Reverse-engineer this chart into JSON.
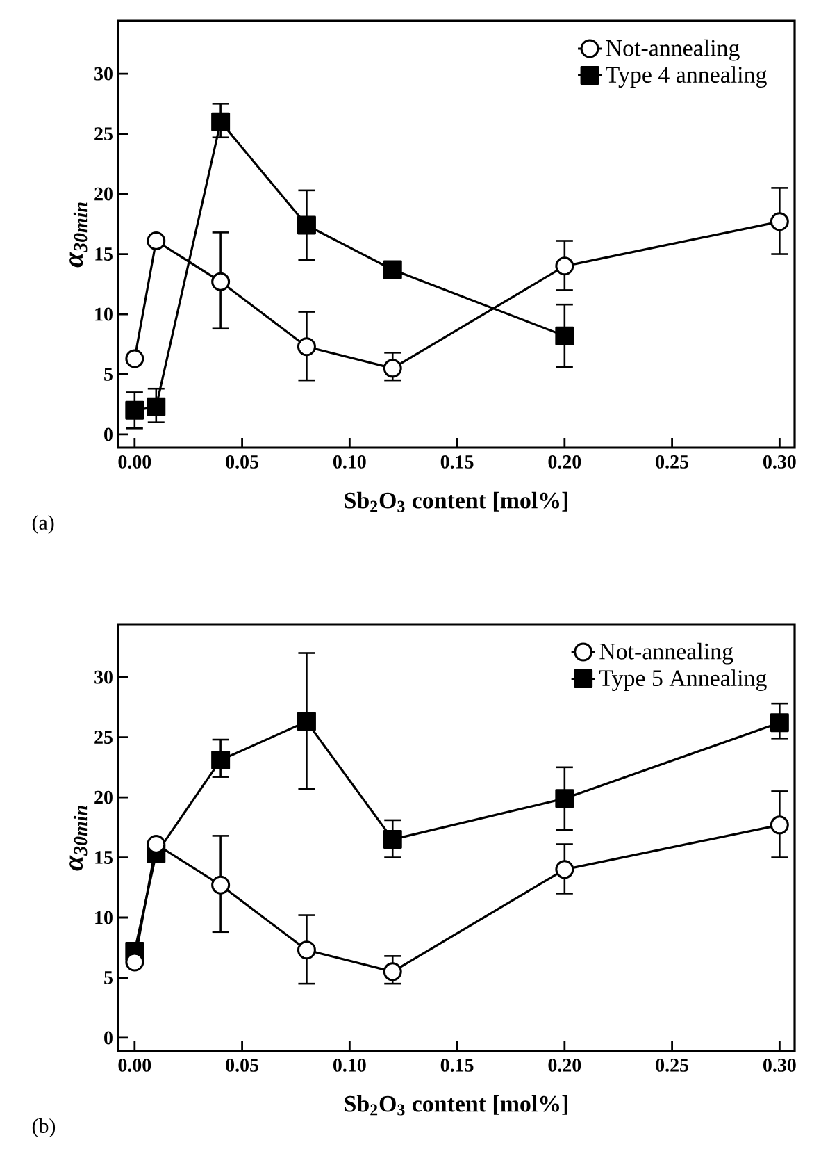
{
  "chart_data": [
    {
      "type": "line",
      "xlabel": "Sb$_{2}$O$_{3}$ content [mol%]",
      "ylabel": "α$_{30min}$",
      "xlim": [
        -0.0077,
        0.307
      ],
      "ylim": [
        -1.1,
        34.4
      ],
      "xticks": [
        {
          "value": 0,
          "label": "0.00"
        },
        0.05,
        {
          "value": 0.1,
          "label": "0.10"
        },
        0.15,
        {
          "value": 0.2,
          "label": "0.20"
        },
        0.25,
        {
          "value": 0.3,
          "label": "0.30"
        }
      ],
      "yticks": [
        0,
        5,
        10,
        15,
        20,
        25,
        30
      ],
      "legend": "top right",
      "grid": false,
      "line_style": "solid",
      "annotations": [
        "(a)"
      ],
      "series": [
        {
          "name": "Not-annealing",
          "color": "#000000",
          "marker": "circle",
          "x": [
            0,
            0.01,
            0.04,
            0.08,
            0.12,
            0.2,
            0.3
          ],
          "values": [
            6.3,
            16.1,
            12.7,
            7.3,
            5.5,
            14.0,
            17.7
          ],
          "errors": [
            null,
            null,
            [
              8.8,
              16.8
            ],
            [
              4.5,
              10.2
            ],
            [
              4.5,
              6.8
            ],
            [
              12.0,
              16.1
            ],
            [
              15.0,
              20.5
            ]
          ]
        },
        {
          "name": "Type 4 annealing",
          "color": "#000000",
          "marker": "square",
          "x": [
            0,
            0.01,
            0.04,
            0.08,
            0.12,
            0.2
          ],
          "values": [
            2.0,
            2.3,
            26.0,
            17.4,
            13.7,
            8.2
          ],
          "errors": [
            [
              0.5,
              3.5
            ],
            [
              1.0,
              3.8
            ],
            [
              24.7,
              27.5
            ],
            [
              14.5,
              20.3
            ],
            null,
            [
              5.6,
              10.8
            ]
          ]
        }
      ]
    },
    {
      "type": "line",
      "xlabel": "Sb$_{2}$O$_{3}$ content [mol%]",
      "ylabel": "α$_{30min}$",
      "xlim": [
        -0.0077,
        0.307
      ],
      "ylim": [
        -1.1,
        34.4
      ],
      "xticks": [
        {
          "value": 0,
          "label": "0.00"
        },
        0.05,
        {
          "value": 0.1,
          "label": "0.10"
        },
        0.15,
        {
          "value": 0.2,
          "label": "0.20"
        },
        0.25,
        {
          "value": 0.3,
          "label": "0.30"
        }
      ],
      "yticks": [
        0,
        5,
        10,
        15,
        20,
        25,
        30
      ],
      "legend": "top right",
      "grid": false,
      "line_style": "solid",
      "annotations": [
        "(b)"
      ],
      "series": [
        {
          "name": "Not-annealing",
          "color": "#000000",
          "marker": "circle",
          "x": [
            0,
            0.01,
            0.04,
            0.08,
            0.12,
            0.2,
            0.3
          ],
          "values": [
            6.3,
            16.1,
            12.7,
            7.3,
            5.5,
            14.0,
            17.7
          ],
          "errors": [
            null,
            null,
            [
              8.8,
              16.8
            ],
            [
              4.5,
              10.2
            ],
            [
              4.5,
              6.8
            ],
            [
              12.0,
              16.1
            ],
            [
              15.0,
              20.5
            ]
          ]
        },
        {
          "name": "Type 5 Annealing",
          "color": "#000000",
          "marker": "square",
          "x": [
            0,
            0.01,
            0.04,
            0.08,
            0.12,
            0.2,
            0.3
          ],
          "values": [
            7.2,
            15.3,
            23.1,
            26.3,
            16.5,
            19.9,
            26.2
          ],
          "errors": [
            null,
            null,
            [
              21.7,
              24.8
            ],
            [
              20.7,
              32.0
            ],
            [
              15.0,
              18.1
            ],
            [
              17.3,
              22.5
            ],
            [
              24.9,
              27.8
            ]
          ]
        }
      ]
    }
  ]
}
